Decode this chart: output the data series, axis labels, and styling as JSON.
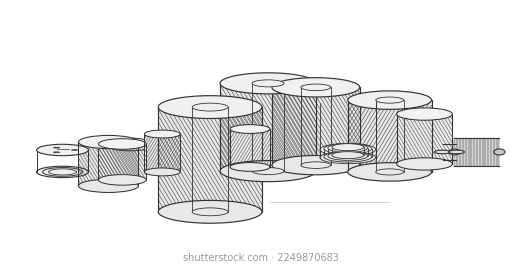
{
  "background_color": "#ffffff",
  "line_color": "#666666",
  "dark_line_color": "#333333",
  "light_line_color": "#999999",
  "very_light_color": "#bbbbbb",
  "figsize": [
    5.22,
    2.8
  ],
  "dpi": 100,
  "watermark_text": "shutterstock.com · 2249870683",
  "watermark_fontsize": 7,
  "watermark_color": "#999999"
}
